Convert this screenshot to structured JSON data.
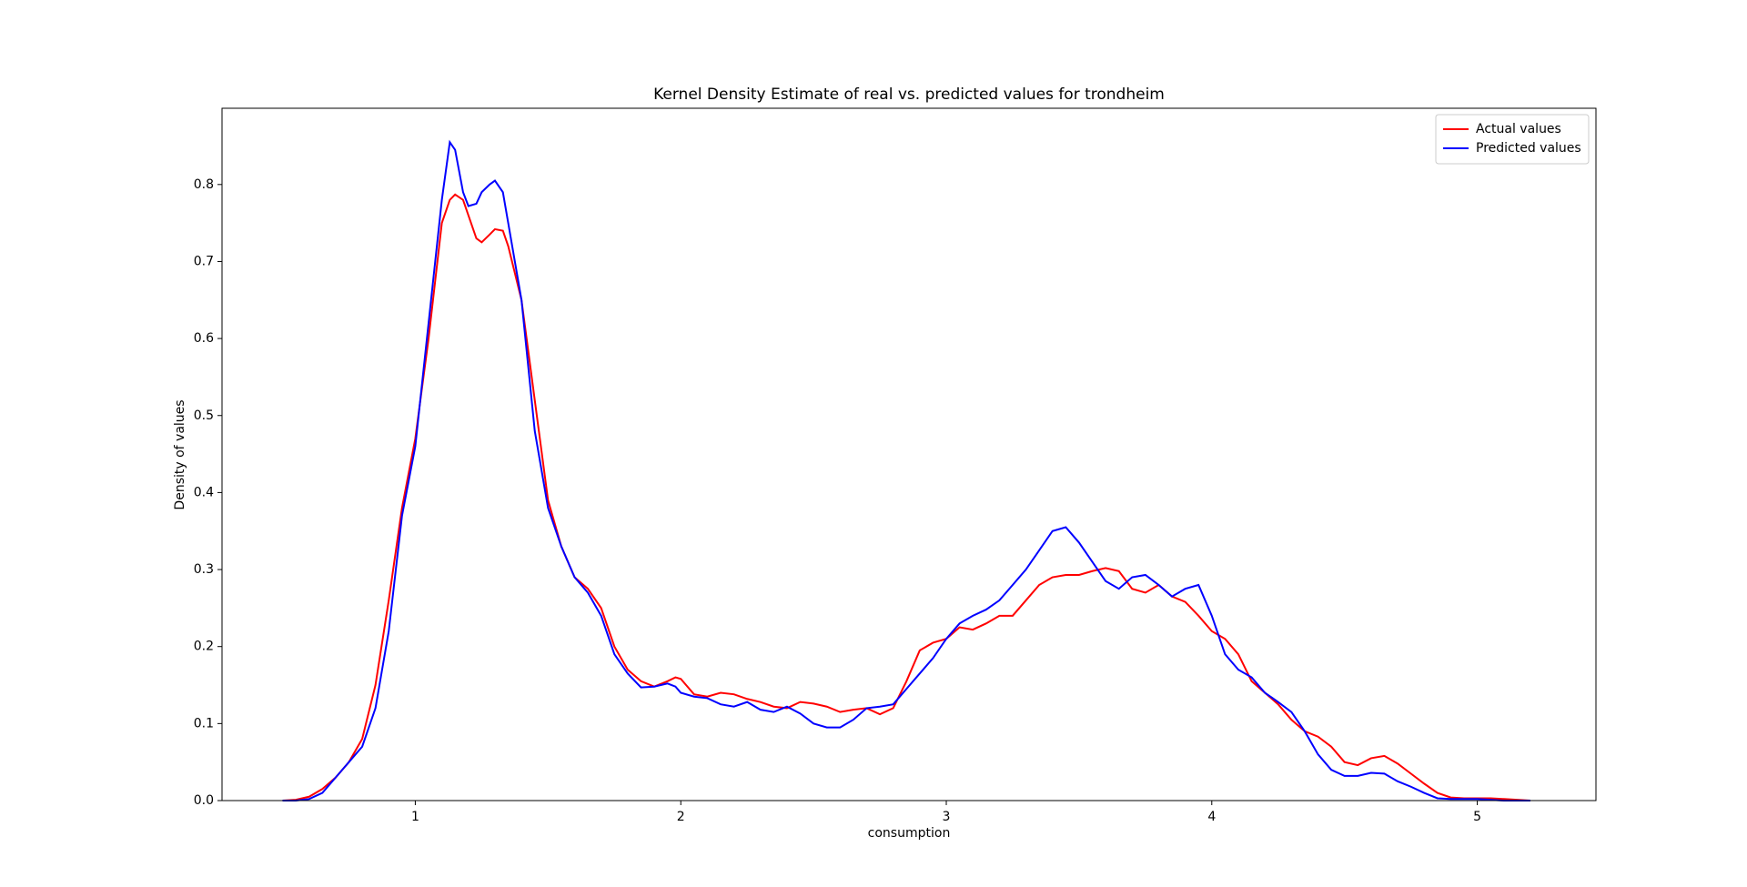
{
  "chart_data": {
    "type": "line",
    "title": "Kernel Density Estimate of real vs. predicted values for trondheim",
    "xlabel": "consumption",
    "ylabel": "Density of values",
    "x": [
      0.5,
      0.55,
      0.6,
      0.65,
      0.7,
      0.75,
      0.8,
      0.85,
      0.9,
      0.95,
      1.0,
      1.05,
      1.1,
      1.13,
      1.15,
      1.18,
      1.2,
      1.23,
      1.25,
      1.28,
      1.3,
      1.33,
      1.35,
      1.4,
      1.45,
      1.5,
      1.55,
      1.6,
      1.65,
      1.7,
      1.75,
      1.8,
      1.85,
      1.9,
      1.95,
      1.98,
      2.0,
      2.05,
      2.1,
      2.15,
      2.2,
      2.25,
      2.3,
      2.35,
      2.4,
      2.45,
      2.5,
      2.55,
      2.6,
      2.65,
      2.7,
      2.75,
      2.8,
      2.85,
      2.9,
      2.95,
      3.0,
      3.05,
      3.1,
      3.15,
      3.2,
      3.25,
      3.3,
      3.35,
      3.4,
      3.45,
      3.5,
      3.55,
      3.6,
      3.65,
      3.7,
      3.75,
      3.8,
      3.85,
      3.9,
      3.95,
      4.0,
      4.05,
      4.1,
      4.15,
      4.2,
      4.25,
      4.3,
      4.35,
      4.4,
      4.45,
      4.5,
      4.55,
      4.6,
      4.65,
      4.7,
      4.75,
      4.8,
      4.85,
      4.9,
      4.95,
      5.0,
      5.05,
      5.1,
      5.15,
      5.2
    ],
    "series": [
      {
        "name": "Actual values",
        "color": "#ff0000",
        "values": [
          0.0,
          0.001,
          0.005,
          0.015,
          0.03,
          0.05,
          0.08,
          0.15,
          0.26,
          0.38,
          0.47,
          0.6,
          0.75,
          0.78,
          0.787,
          0.78,
          0.76,
          0.73,
          0.725,
          0.735,
          0.742,
          0.74,
          0.72,
          0.65,
          0.52,
          0.39,
          0.33,
          0.29,
          0.275,
          0.25,
          0.2,
          0.17,
          0.155,
          0.148,
          0.155,
          0.16,
          0.158,
          0.138,
          0.135,
          0.14,
          0.138,
          0.132,
          0.128,
          0.122,
          0.12,
          0.128,
          0.126,
          0.122,
          0.115,
          0.118,
          0.12,
          0.112,
          0.12,
          0.155,
          0.195,
          0.205,
          0.21,
          0.225,
          0.222,
          0.23,
          0.24,
          0.24,
          0.26,
          0.28,
          0.29,
          0.293,
          0.293,
          0.298,
          0.302,
          0.298,
          0.275,
          0.27,
          0.28,
          0.265,
          0.258,
          0.24,
          0.22,
          0.21,
          0.19,
          0.155,
          0.14,
          0.125,
          0.105,
          0.09,
          0.083,
          0.07,
          0.05,
          0.046,
          0.055,
          0.058,
          0.048,
          0.035,
          0.022,
          0.01,
          0.004,
          0.003,
          0.003,
          0.003,
          0.002,
          0.001,
          0.0
        ]
      },
      {
        "name": "Predicted values",
        "color": "#0000ff",
        "values": [
          0.0,
          0.0,
          0.002,
          0.01,
          0.03,
          0.05,
          0.07,
          0.12,
          0.22,
          0.37,
          0.46,
          0.62,
          0.78,
          0.855,
          0.845,
          0.79,
          0.772,
          0.775,
          0.79,
          0.8,
          0.805,
          0.79,
          0.75,
          0.65,
          0.48,
          0.38,
          0.33,
          0.29,
          0.27,
          0.24,
          0.19,
          0.165,
          0.147,
          0.148,
          0.152,
          0.148,
          0.14,
          0.135,
          0.133,
          0.125,
          0.122,
          0.128,
          0.118,
          0.115,
          0.122,
          0.113,
          0.1,
          0.095,
          0.095,
          0.105,
          0.12,
          0.122,
          0.125,
          0.145,
          0.165,
          0.185,
          0.21,
          0.23,
          0.24,
          0.248,
          0.26,
          0.28,
          0.3,
          0.325,
          0.35,
          0.355,
          0.335,
          0.31,
          0.285,
          0.275,
          0.29,
          0.293,
          0.28,
          0.265,
          0.275,
          0.28,
          0.24,
          0.19,
          0.17,
          0.16,
          0.14,
          0.128,
          0.115,
          0.09,
          0.06,
          0.04,
          0.032,
          0.032,
          0.036,
          0.035,
          0.025,
          0.018,
          0.01,
          0.003,
          0.002,
          0.002,
          0.002,
          0.001,
          0.0,
          0.0,
          0.0
        ]
      }
    ],
    "xlim": [
      0.272,
      5.447
    ],
    "ylim": [
      0,
      0.899
    ],
    "xticks": [
      1,
      2,
      3,
      4,
      5
    ],
    "yticks": [
      {
        "value": 0,
        "label": "0.0"
      },
      0.1,
      0.2,
      0.3,
      0.4,
      0.5,
      0.6,
      0.7,
      0.8
    ],
    "legend": "upper right",
    "grid": false
  }
}
